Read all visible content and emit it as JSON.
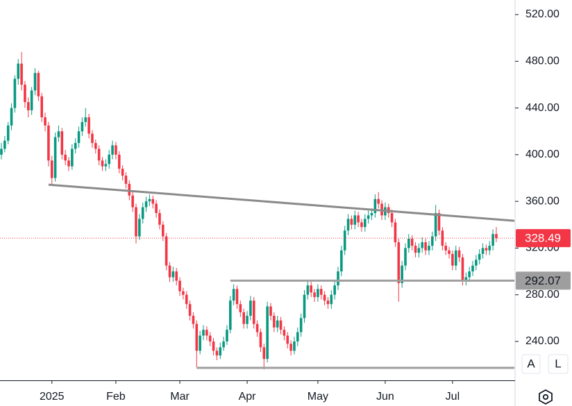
{
  "chart_data": {
    "type": "candlestick",
    "categories": [
      null,
      null,
      null,
      null,
      null,
      null,
      null,
      null,
      null,
      null,
      null,
      null,
      null,
      null,
      null,
      "2025",
      null,
      null,
      null,
      null,
      null,
      null,
      null,
      null,
      null,
      null,
      null,
      null,
      null,
      null,
      null,
      null,
      null,
      null,
      "Feb",
      null,
      null,
      null,
      null,
      null,
      null,
      null,
      null,
      null,
      null,
      null,
      null,
      null,
      null,
      null,
      null,
      null,
      null,
      "Mar",
      null,
      null,
      null,
      null,
      null,
      null,
      null,
      null,
      null,
      null,
      null,
      null,
      null,
      null,
      null,
      null,
      null,
      null,
      null,
      "Apr",
      null,
      null,
      null,
      null,
      null,
      null,
      null,
      null,
      null,
      null,
      null,
      null,
      null,
      null,
      null,
      null,
      null,
      null,
      null,
      null,
      "May",
      null,
      null,
      null,
      null,
      null,
      null,
      null,
      null,
      null,
      null,
      null,
      null,
      null,
      null,
      null,
      null,
      null,
      null,
      null,
      "Jun",
      null,
      null,
      null,
      null,
      null,
      null,
      null,
      null,
      null,
      null,
      null,
      null,
      null,
      null,
      null,
      null,
      null,
      null,
      null,
      "Jul",
      null,
      null,
      null,
      null,
      null,
      null,
      null,
      null,
      null,
      null,
      null,
      null,
      null
    ],
    "ohlc": [
      [
        400,
        410,
        396,
        405
      ],
      [
        405,
        416,
        402,
        412
      ],
      [
        412,
        428,
        409,
        425
      ],
      [
        425,
        444,
        421,
        440
      ],
      [
        440,
        468,
        436,
        465
      ],
      [
        465,
        482,
        460,
        478
      ],
      [
        478,
        488,
        455,
        460
      ],
      [
        460,
        463,
        440,
        445
      ],
      [
        445,
        449,
        432,
        438
      ],
      [
        438,
        458,
        434,
        455
      ],
      [
        455,
        474,
        451,
        470
      ],
      [
        470,
        472,
        446,
        450
      ],
      [
        450,
        453,
        428,
        432
      ],
      [
        432,
        436,
        420,
        425
      ],
      [
        425,
        428,
        390,
        395
      ],
      [
        395,
        399,
        375,
        380
      ],
      [
        380,
        419,
        377,
        415
      ],
      [
        415,
        425,
        411,
        420
      ],
      [
        420,
        423,
        396,
        400
      ],
      [
        400,
        404,
        391,
        395
      ],
      [
        395,
        398,
        386,
        390
      ],
      [
        390,
        409,
        387,
        405
      ],
      [
        405,
        414,
        401,
        410
      ],
      [
        410,
        424,
        406,
        420
      ],
      [
        420,
        432,
        416,
        428
      ],
      [
        428,
        440,
        424,
        432
      ],
      [
        432,
        435,
        414,
        418
      ],
      [
        418,
        421,
        406,
        410
      ],
      [
        410,
        413,
        401,
        405
      ],
      [
        405,
        408,
        391,
        395
      ],
      [
        395,
        398,
        386,
        390
      ],
      [
        390,
        396,
        386,
        392
      ],
      [
        392,
        404,
        388,
        400
      ],
      [
        400,
        412,
        396,
        408
      ],
      [
        408,
        411,
        396,
        400
      ],
      [
        400,
        403,
        384,
        388
      ],
      [
        388,
        391,
        378,
        382
      ],
      [
        382,
        385,
        371,
        375
      ],
      [
        375,
        378,
        361,
        365
      ],
      [
        365,
        368,
        351,
        355
      ],
      [
        355,
        358,
        324,
        330
      ],
      [
        330,
        349,
        327,
        345
      ],
      [
        345,
        359,
        341,
        355
      ],
      [
        355,
        364,
        351,
        360
      ],
      [
        360,
        366,
        356,
        362
      ],
      [
        362,
        365,
        354,
        358
      ],
      [
        358,
        361,
        346,
        350
      ],
      [
        350,
        353,
        336,
        340
      ],
      [
        340,
        343,
        326,
        330
      ],
      [
        330,
        333,
        301,
        305
      ],
      [
        305,
        308,
        291,
        295
      ],
      [
        295,
        304,
        291,
        300
      ],
      [
        300,
        303,
        288,
        292
      ],
      [
        292,
        295,
        279,
        283
      ],
      [
        283,
        286,
        276,
        280
      ],
      [
        280,
        283,
        268,
        272
      ],
      [
        272,
        275,
        258,
        262
      ],
      [
        262,
        265,
        251,
        255
      ],
      [
        255,
        258,
        218,
        232
      ],
      [
        232,
        249,
        229,
        245
      ],
      [
        245,
        254,
        241,
        250
      ],
      [
        250,
        253,
        241,
        245
      ],
      [
        245,
        248,
        236,
        240
      ],
      [
        240,
        243,
        228,
        232
      ],
      [
        232,
        235,
        224,
        228
      ],
      [
        228,
        239,
        225,
        235
      ],
      [
        235,
        244,
        232,
        240
      ],
      [
        240,
        254,
        237,
        250
      ],
      [
        250,
        279,
        247,
        275
      ],
      [
        275,
        289,
        271,
        285
      ],
      [
        285,
        288,
        268,
        272
      ],
      [
        272,
        275,
        261,
        265
      ],
      [
        265,
        268,
        251,
        255
      ],
      [
        255,
        266,
        251,
        262
      ],
      [
        262,
        279,
        258,
        275
      ],
      [
        275,
        278,
        251,
        255
      ],
      [
        255,
        258,
        244,
        248
      ],
      [
        248,
        251,
        231,
        235
      ],
      [
        235,
        238,
        216,
        225
      ],
      [
        225,
        274,
        222,
        270
      ],
      [
        270,
        273,
        258,
        262
      ],
      [
        262,
        265,
        248,
        252
      ],
      [
        252,
        262,
        248,
        258
      ],
      [
        258,
        261,
        246,
        250
      ],
      [
        250,
        253,
        241,
        245
      ],
      [
        245,
        248,
        234,
        238
      ],
      [
        238,
        241,
        228,
        232
      ],
      [
        232,
        244,
        229,
        240
      ],
      [
        240,
        252,
        236,
        248
      ],
      [
        248,
        264,
        244,
        260
      ],
      [
        260,
        284,
        256,
        280
      ],
      [
        280,
        292,
        276,
        288
      ],
      [
        288,
        291,
        278,
        282
      ],
      [
        282,
        285,
        274,
        278
      ],
      [
        278,
        289,
        274,
        285
      ],
      [
        285,
        288,
        276,
        280
      ],
      [
        280,
        283,
        271,
        275
      ],
      [
        275,
        278,
        268,
        272
      ],
      [
        272,
        284,
        268,
        280
      ],
      [
        280,
        292,
        276,
        288
      ],
      [
        288,
        304,
        284,
        300
      ],
      [
        300,
        322,
        296,
        318
      ],
      [
        318,
        339,
        314,
        335
      ],
      [
        335,
        349,
        331,
        345
      ],
      [
        345,
        348,
        336,
        340
      ],
      [
        340,
        352,
        336,
        348
      ],
      [
        348,
        351,
        338,
        342
      ],
      [
        342,
        345,
        334,
        338
      ],
      [
        338,
        349,
        334,
        345
      ],
      [
        345,
        352,
        341,
        348
      ],
      [
        348,
        354,
        344,
        350
      ],
      [
        350,
        366,
        346,
        362
      ],
      [
        362,
        368,
        354,
        358
      ],
      [
        358,
        361,
        344,
        348
      ],
      [
        348,
        359,
        344,
        355
      ],
      [
        355,
        358,
        346,
        350
      ],
      [
        350,
        353,
        338,
        342
      ],
      [
        342,
        345,
        321,
        325
      ],
      [
        325,
        328,
        274,
        290
      ],
      [
        290,
        309,
        286,
        305
      ],
      [
        305,
        324,
        301,
        320
      ],
      [
        320,
        332,
        316,
        328
      ],
      [
        328,
        331,
        318,
        322
      ],
      [
        322,
        325,
        312,
        316
      ],
      [
        316,
        324,
        312,
        320
      ],
      [
        320,
        329,
        316,
        325
      ],
      [
        325,
        328,
        314,
        318
      ],
      [
        318,
        326,
        314,
        322
      ],
      [
        322,
        334,
        318,
        330
      ],
      [
        330,
        357,
        326,
        350
      ],
      [
        350,
        353,
        331,
        335
      ],
      [
        335,
        338,
        318,
        322
      ],
      [
        322,
        325,
        314,
        318
      ],
      [
        318,
        321,
        311,
        315
      ],
      [
        315,
        318,
        301,
        305
      ],
      [
        305,
        322,
        301,
        318
      ],
      [
        318,
        321,
        308,
        312
      ],
      [
        312,
        315,
        288,
        292
      ],
      [
        292,
        299,
        288,
        295
      ],
      [
        295,
        304,
        291,
        300
      ],
      [
        300,
        309,
        296,
        305
      ],
      [
        305,
        314,
        301,
        310
      ],
      [
        310,
        319,
        306,
        315
      ],
      [
        315,
        324,
        311,
        320
      ],
      [
        320,
        323,
        314,
        318
      ],
      [
        318,
        326,
        314,
        322
      ],
      [
        322,
        336,
        318,
        332
      ],
      [
        332,
        338,
        325,
        328.49
      ]
    ],
    "up_color": "#089981",
    "down_color": "#f23645",
    "ylim": [
      206.7,
      532.5
    ],
    "yticks": [
      {
        "value": 240,
        "label": "240.00"
      },
      {
        "value": 280,
        "label": "280.00"
      },
      {
        "value": 320,
        "label": "320.00"
      },
      {
        "value": 360,
        "label": "360.00"
      },
      {
        "value": 400,
        "label": "400.00"
      },
      {
        "value": 440,
        "label": "440.00"
      },
      {
        "value": 480,
        "label": "480.00"
      },
      {
        "value": 520,
        "label": "520.00"
      }
    ],
    "grid": false,
    "lines": [
      {
        "points": [
          [
            14,
            374.3
          ],
          [
            147,
            344.6
          ]
        ],
        "extend": "right",
        "color": "#8a8a8a"
      },
      {
        "points": [
          [
            68,
            292.07
          ],
          [
            147,
            292.07
          ]
        ],
        "extend": "right",
        "color": "#9e9e9e",
        "label": true
      },
      {
        "points": [
          [
            58,
            217.4
          ],
          [
            147,
            217.4
          ]
        ],
        "extend": "right",
        "color": "#9e9e9e"
      }
    ],
    "last_price_color": "#f23645"
  },
  "buttons": [
    "A",
    "L"
  ]
}
